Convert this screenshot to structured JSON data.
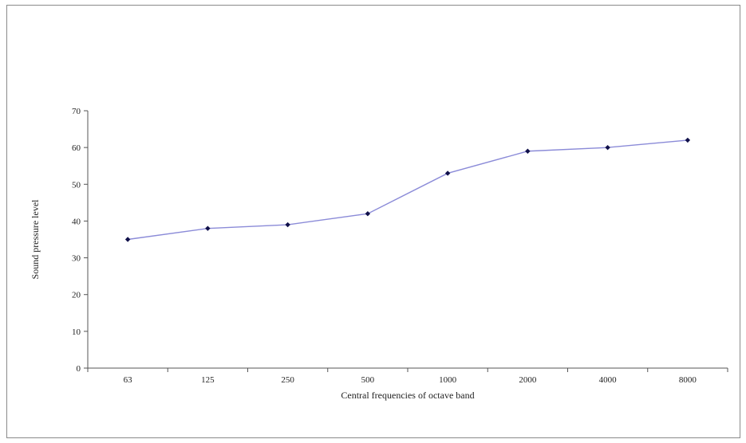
{
  "chart_data": {
    "type": "line",
    "title": "",
    "xlabel": "Central frequencies  of octave band",
    "ylabel": "Sound pressure level",
    "categories": [
      "63",
      "125",
      "250",
      "500",
      "1000",
      "2000",
      "4000",
      "8000"
    ],
    "series": [
      {
        "values": [
          35,
          38,
          39,
          42,
          53,
          59,
          60,
          62
        ],
        "color": "#1a1a6e"
      }
    ],
    "ylim": [
      0,
      70
    ],
    "yticks": [
      0,
      10,
      20,
      30,
      40,
      50,
      60,
      70
    ],
    "grid": false,
    "legend": "none",
    "line_color": "#8b8bd8",
    "marker_color": "#10104a",
    "axis_color": "#555555"
  }
}
